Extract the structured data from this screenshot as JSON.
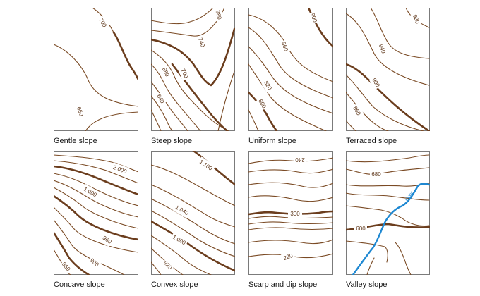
{
  "panels": [
    {
      "caption": "Gentle slope",
      "labels": [
        "700",
        "660"
      ]
    },
    {
      "caption": "Steep slope",
      "labels": [
        "780",
        "740",
        "700",
        "680",
        "640"
      ]
    },
    {
      "caption": "Uniform slope",
      "labels": [
        "900",
        "860",
        "820",
        "800"
      ]
    },
    {
      "caption": "Terraced slope",
      "labels": [
        "980",
        "940",
        "900",
        "860"
      ]
    },
    {
      "caption": "Concave slope",
      "labels": [
        "2 000",
        "1 000",
        "960",
        "900",
        "860"
      ]
    },
    {
      "caption": "Convex slope",
      "labels": [
        "1 100",
        "1 040",
        "1 000",
        "920"
      ]
    },
    {
      "caption": "Scarp and dip slope",
      "labels": [
        "240",
        "300",
        "220"
      ]
    },
    {
      "caption": "Valley slope",
      "labels": [
        "680",
        "600"
      ],
      "river_label": "river"
    }
  ],
  "colors": {
    "contour": "#7a4a24",
    "index_contour": "#6b3d1d",
    "river": "#1e88d2",
    "frame": "#5a5a5a"
  }
}
